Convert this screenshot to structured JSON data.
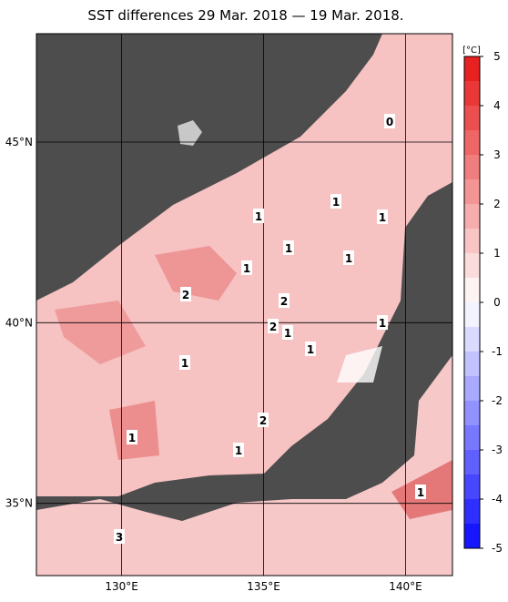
{
  "header": {
    "title": "SST differences 29 Mar. 2018 — 19 Mar. 2018."
  },
  "map": {
    "lon_range": [
      127,
      141.65
    ],
    "lat_range": [
      33,
      48
    ],
    "lon_labels": [
      {
        "value": 130,
        "label": "130°E"
      },
      {
        "value": 135,
        "label": "135°E"
      },
      {
        "value": 140,
        "label": "140°E"
      }
    ],
    "lat_labels": [
      {
        "value": 45,
        "label": "45°N"
      },
      {
        "value": 40,
        "label": "40°N"
      },
      {
        "value": 35,
        "label": "35°N"
      }
    ],
    "contour_labels": [
      0,
      1,
      1,
      1,
      1,
      1,
      2,
      1,
      2,
      2,
      1,
      1,
      1,
      1,
      2,
      1,
      1,
      3,
      1
    ]
  },
  "colorbar": {
    "unit": "[°C]",
    "range": [
      -5,
      5
    ],
    "ticks": [
      5,
      4,
      3,
      2,
      1,
      0,
      -1,
      -2,
      -3,
      -4,
      -5
    ]
  }
}
